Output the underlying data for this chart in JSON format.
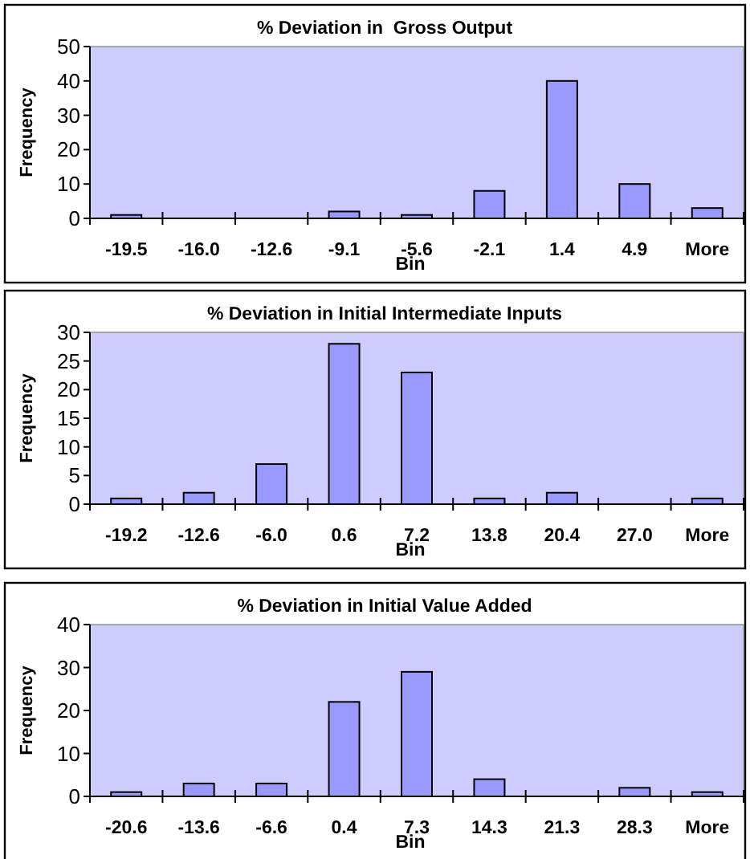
{
  "chart_data": [
    {
      "type": "bar",
      "title": "% Deviation in  Gross Output",
      "xlabel": "Bin",
      "ylabel": "Frequency",
      "categories": [
        "-19.5",
        "-16.0",
        "-12.6",
        "-9.1",
        "-5.6",
        "-2.1",
        "1.4",
        "4.9",
        "More"
      ],
      "values": [
        1,
        0,
        0,
        2,
        1,
        8,
        40,
        10,
        3
      ],
      "color": "#9999ff",
      "ylim": [
        0,
        50
      ],
      "yticks": [
        0,
        10,
        20,
        30,
        40,
        50
      ],
      "grid": false
    },
    {
      "type": "bar",
      "title": "% Deviation in Initial Intermediate Inputs",
      "xlabel": "Bin",
      "ylabel": "Frequency",
      "categories": [
        "-19.2",
        "-12.6",
        "-6.0",
        "0.6",
        "7.2",
        "13.8",
        "20.4",
        "27.0",
        "More"
      ],
      "values": [
        1,
        2,
        7,
        28,
        23,
        1,
        2,
        0,
        1
      ],
      "color": "#9999ff",
      "ylim": [
        0,
        30
      ],
      "yticks": [
        0,
        5,
        10,
        15,
        20,
        25,
        30
      ],
      "grid": false
    },
    {
      "type": "bar",
      "title": "% Deviation in Initial Value Added",
      "xlabel": "Bin",
      "ylabel": "Frequency",
      "categories": [
        "-20.6",
        "-13.6",
        "-6.6",
        "0.4",
        "7.3",
        "14.3",
        "21.3",
        "28.3",
        "More"
      ],
      "values": [
        1,
        3,
        3,
        22,
        29,
        4,
        0,
        2,
        1
      ],
      "color": "#9999ff",
      "ylim": [
        0,
        40
      ],
      "yticks": [
        0,
        10,
        20,
        30,
        40
      ],
      "grid": false
    }
  ]
}
